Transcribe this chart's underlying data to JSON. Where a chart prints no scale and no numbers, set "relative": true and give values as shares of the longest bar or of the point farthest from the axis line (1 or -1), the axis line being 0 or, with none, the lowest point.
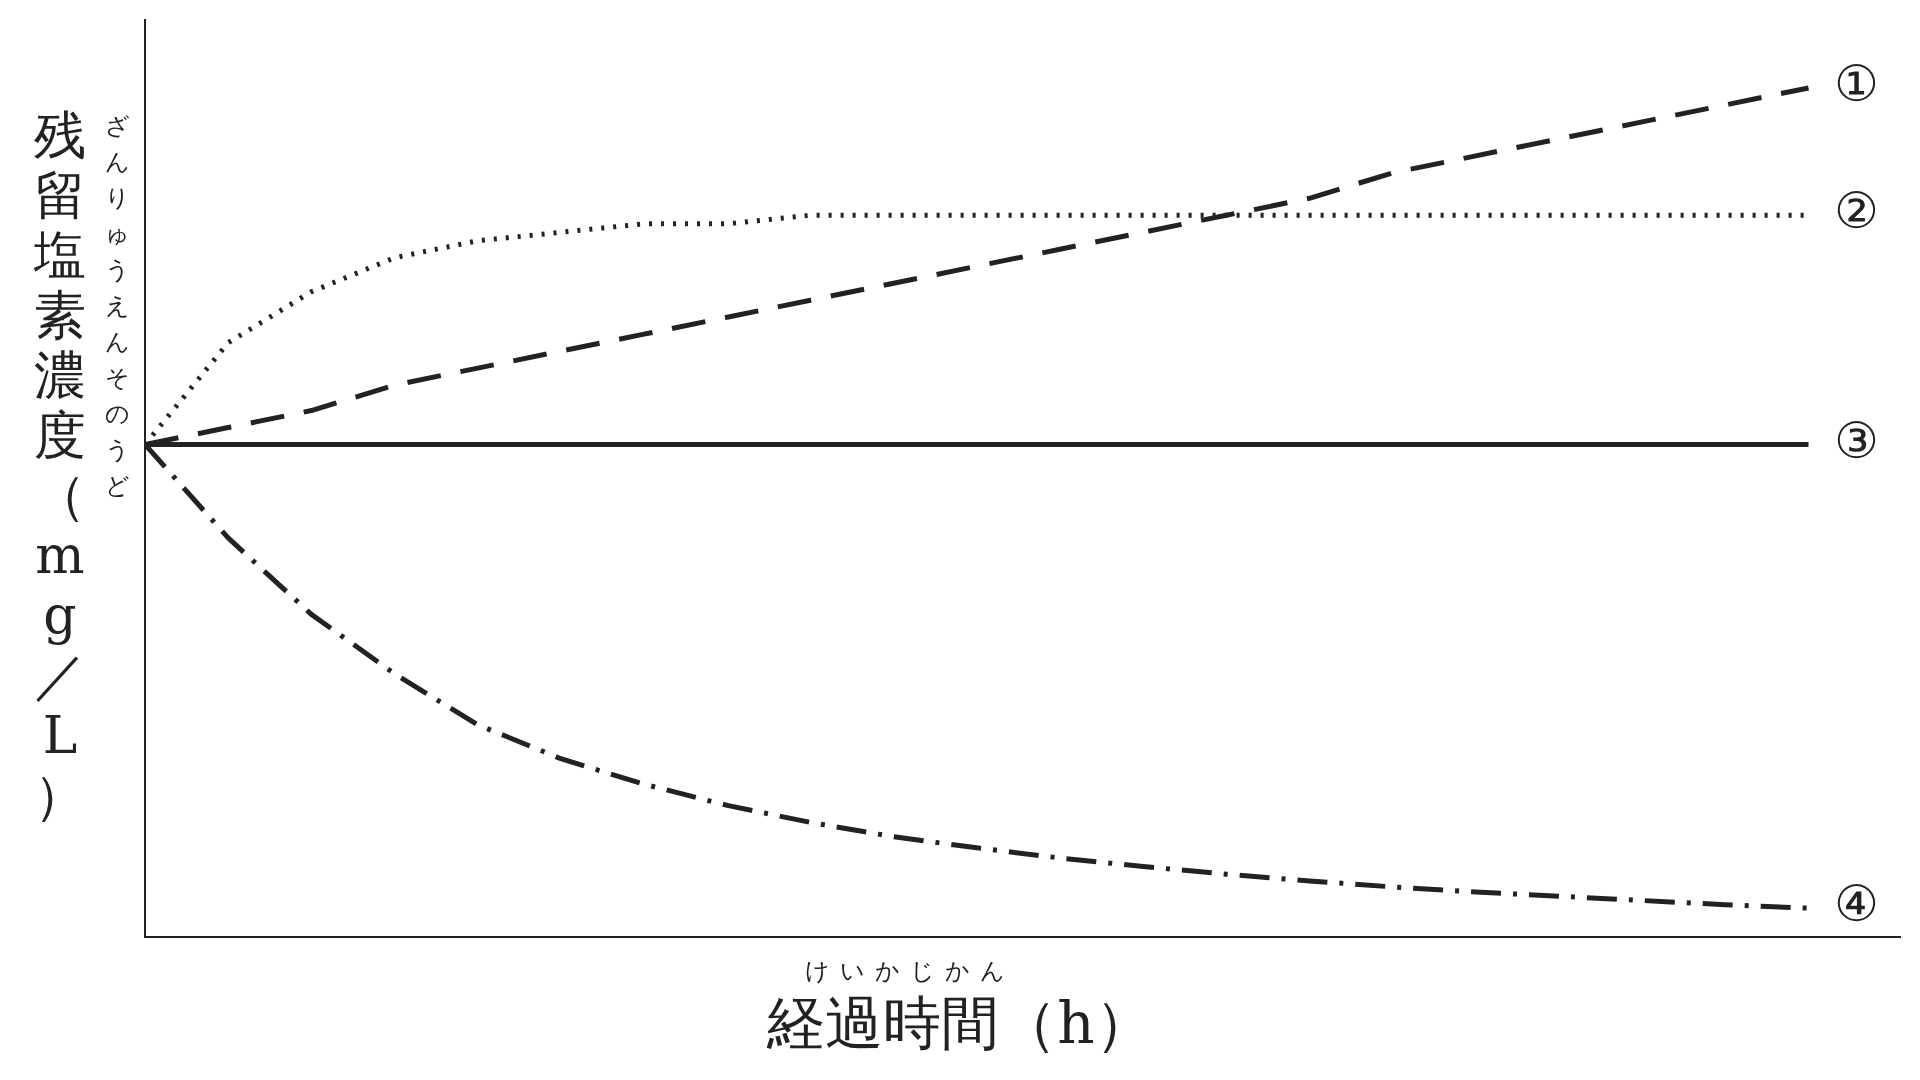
{
  "chart_data": {
    "type": "line",
    "relative": true,
    "xlabel": "経過時間（h）",
    "ylabel": "残留塩素濃度（mg／L）",
    "annotations": [
      "ざんりゅうえんそのうど",
      "けいかじかん"
    ],
    "categories": [
      null,
      null,
      null,
      null,
      null,
      null,
      null,
      null,
      null,
      null,
      null,
      null,
      null,
      null,
      null,
      null,
      null,
      null,
      null,
      null,
      null
    ],
    "series": [
      {
        "name": "①",
        "color": "#222222",
        "line_style": "dashed",
        "values": [
          0.58,
          0.6,
          0.62,
          0.65,
          0.67,
          0.69,
          0.71,
          0.73,
          0.75,
          0.77,
          0.79,
          0.81,
          0.83,
          0.85,
          0.87,
          0.9,
          0.92,
          0.94,
          0.96,
          0.98,
          1
        ]
      },
      {
        "name": "②",
        "color": "#222222",
        "line_style": "dotted",
        "values": [
          0.58,
          0.7,
          0.76,
          0.8,
          0.82,
          0.83,
          0.84,
          0.84,
          0.85,
          0.85,
          0.85,
          0.85,
          0.85,
          0.85,
          0.85,
          0.85,
          0.85,
          0.85,
          0.85,
          0.85,
          0.85
        ]
      },
      {
        "name": "③",
        "color": "#222222",
        "line_style": "solid",
        "values": [
          0.58,
          0.58,
          0.58,
          0.58,
          0.58,
          0.58,
          0.58,
          0.58,
          0.58,
          0.58,
          0.58,
          0.58,
          0.58,
          0.58,
          0.58,
          0.58,
          0.58,
          0.58,
          0.58,
          0.58,
          0.58
        ]
      },
      {
        "name": "④",
        "color": "#222222",
        "line_style": "dashdot",
        "values": [
          0.58,
          0.47,
          0.38,
          0.31,
          0.25,
          0.21,
          0.18,
          0.155,
          0.135,
          0.118,
          0.105,
          0.093,
          0.083,
          0.074,
          0.066,
          0.059,
          0.053,
          0.048,
          0.043,
          0.038,
          0.034
        ]
      }
    ],
    "legend": false,
    "grid": false,
    "marker": "none",
    "tick_labels": false
  }
}
